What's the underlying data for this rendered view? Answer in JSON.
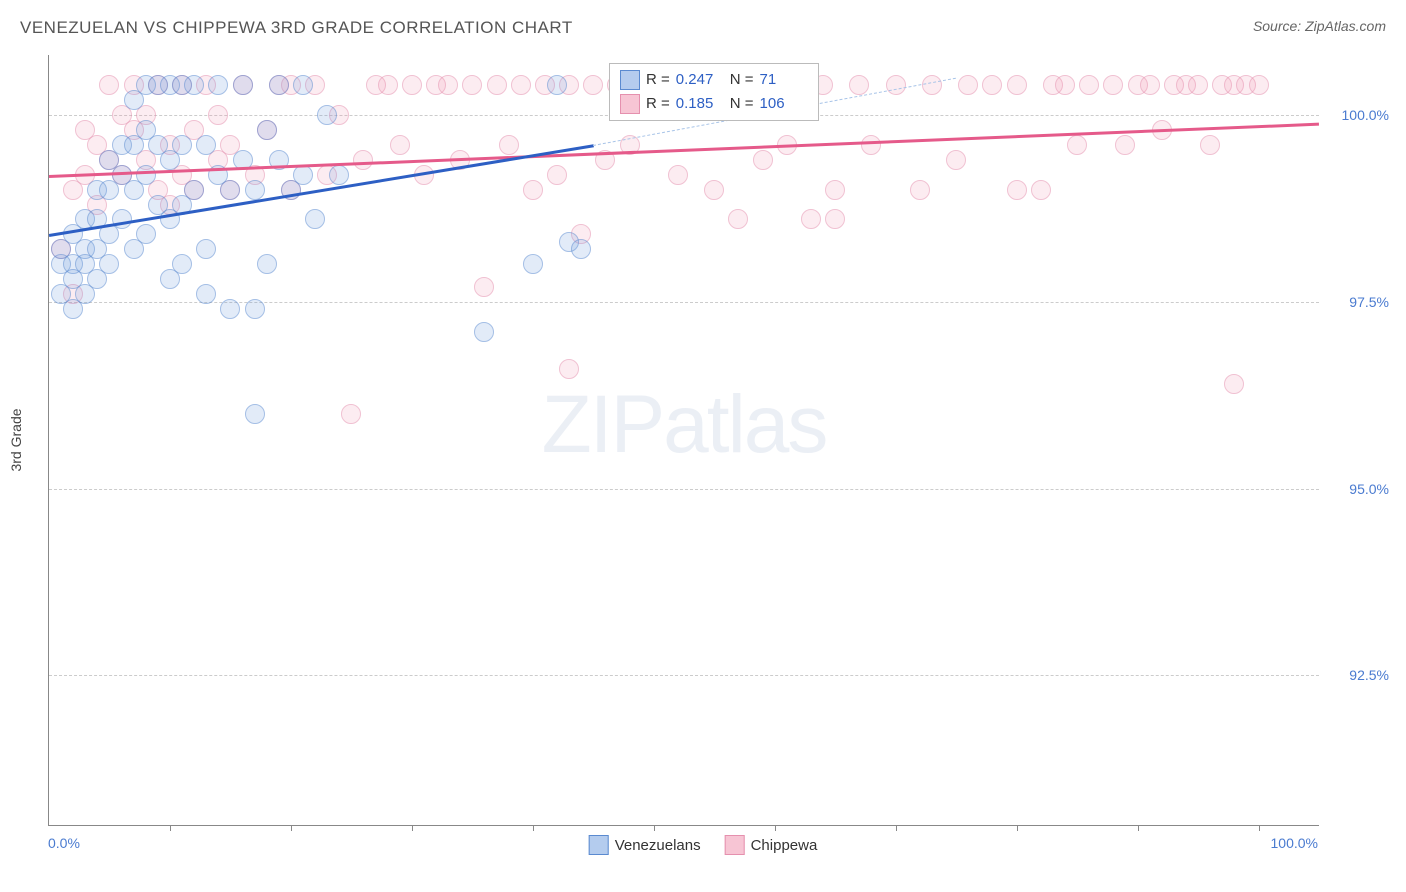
{
  "title": "VENEZUELAN VS CHIPPEWA 3RD GRADE CORRELATION CHART",
  "source": "Source: ZipAtlas.com",
  "axis": {
    "y_title": "3rd Grade",
    "x_min_label": "0.0%",
    "x_max_label": "100.0%",
    "y_ticks": [
      {
        "val": 100.0,
        "label": "100.0%"
      },
      {
        "val": 97.5,
        "label": "97.5%"
      },
      {
        "val": 95.0,
        "label": "95.0%"
      },
      {
        "val": 92.5,
        "label": "92.5%"
      }
    ],
    "x_tick_positions": [
      10,
      20,
      30,
      40,
      50,
      60,
      70,
      80,
      90,
      100
    ],
    "xlim": [
      0,
      105
    ],
    "ylim": [
      90.5,
      100.8
    ]
  },
  "series": [
    {
      "name": "Venezuelans",
      "color_fill": "#6a9ade",
      "color_stroke": "#5a8ad0",
      "class": "blue"
    },
    {
      "name": "Chippewa",
      "color_fill": "#f08caa",
      "color_stroke": "#e590ae",
      "class": "pink"
    }
  ],
  "stats": [
    {
      "series": "Venezuelans",
      "R": "0.247",
      "N": "71"
    },
    {
      "series": "Chippewa",
      "R": "0.185",
      "N": "106"
    }
  ],
  "trend_lines": {
    "blue": {
      "x1": 0,
      "y1": 98.4,
      "x2": 45,
      "y2": 99.6
    },
    "blue_dash": {
      "x1": 45,
      "y1": 99.6,
      "x2": 75,
      "y2": 100.5
    },
    "pink": {
      "x1": 0,
      "y1": 99.2,
      "x2": 105,
      "y2": 99.9
    }
  },
  "watermark": {
    "part1": "ZIP",
    "part2": "atlas"
  },
  "points_blue": [
    [
      1,
      98.2
    ],
    [
      1,
      98.0
    ],
    [
      1,
      97.6
    ],
    [
      2,
      98.4
    ],
    [
      2,
      98.0
    ],
    [
      2,
      97.8
    ],
    [
      2,
      97.4
    ],
    [
      3,
      98.6
    ],
    [
      3,
      98.2
    ],
    [
      3,
      98.0
    ],
    [
      3,
      97.6
    ],
    [
      4,
      99.0
    ],
    [
      4,
      98.6
    ],
    [
      4,
      98.2
    ],
    [
      4,
      97.8
    ],
    [
      5,
      99.4
    ],
    [
      5,
      99.0
    ],
    [
      5,
      98.4
    ],
    [
      5,
      98.0
    ],
    [
      6,
      99.6
    ],
    [
      6,
      99.2
    ],
    [
      6,
      98.6
    ],
    [
      7,
      100.2
    ],
    [
      7,
      99.6
    ],
    [
      7,
      99.0
    ],
    [
      7,
      98.2
    ],
    [
      8,
      100.4
    ],
    [
      8,
      99.8
    ],
    [
      8,
      99.2
    ],
    [
      8,
      98.4
    ],
    [
      9,
      100.4
    ],
    [
      9,
      99.6
    ],
    [
      9,
      98.8
    ],
    [
      10,
      100.4
    ],
    [
      10,
      99.4
    ],
    [
      10,
      98.6
    ],
    [
      10,
      97.8
    ],
    [
      11,
      100.4
    ],
    [
      11,
      99.6
    ],
    [
      11,
      98.8
    ],
    [
      11,
      98.0
    ],
    [
      12,
      100.4
    ],
    [
      12,
      99.0
    ],
    [
      13,
      99.6
    ],
    [
      13,
      98.2
    ],
    [
      13,
      97.6
    ],
    [
      14,
      99.2
    ],
    [
      14,
      100.4
    ],
    [
      15,
      99.0
    ],
    [
      15,
      97.4
    ],
    [
      16,
      100.4
    ],
    [
      16,
      99.4
    ],
    [
      17,
      99.0
    ],
    [
      17,
      97.4
    ],
    [
      18,
      99.8
    ],
    [
      18,
      98.0
    ],
    [
      19,
      99.4
    ],
    [
      19,
      100.4
    ],
    [
      20,
      99.0
    ],
    [
      21,
      100.4
    ],
    [
      21,
      99.2
    ],
    [
      22,
      98.6
    ],
    [
      23,
      100.0
    ],
    [
      24,
      99.2
    ],
    [
      17,
      96.0
    ],
    [
      36,
      97.1
    ],
    [
      40,
      98.0
    ],
    [
      42,
      100.4
    ],
    [
      43,
      98.3
    ],
    [
      44,
      98.2
    ]
  ],
  "points_pink": [
    [
      1,
      98.2
    ],
    [
      2,
      99.0
    ],
    [
      2,
      97.6
    ],
    [
      3,
      99.2
    ],
    [
      3,
      99.8
    ],
    [
      4,
      99.6
    ],
    [
      4,
      98.8
    ],
    [
      5,
      100.4
    ],
    [
      5,
      99.4
    ],
    [
      6,
      100.0
    ],
    [
      6,
      99.2
    ],
    [
      7,
      100.4
    ],
    [
      7,
      99.8
    ],
    [
      8,
      99.4
    ],
    [
      8,
      100.0
    ],
    [
      9,
      99.0
    ],
    [
      9,
      100.4
    ],
    [
      10,
      99.6
    ],
    [
      10,
      98.8
    ],
    [
      11,
      100.4
    ],
    [
      11,
      99.2
    ],
    [
      12,
      99.8
    ],
    [
      12,
      99.0
    ],
    [
      13,
      100.4
    ],
    [
      14,
      99.4
    ],
    [
      14,
      100.0
    ],
    [
      15,
      99.6
    ],
    [
      15,
      99.0
    ],
    [
      16,
      100.4
    ],
    [
      17,
      99.2
    ],
    [
      18,
      99.8
    ],
    [
      19,
      100.4
    ],
    [
      20,
      99.0
    ],
    [
      20,
      100.4
    ],
    [
      22,
      100.4
    ],
    [
      23,
      99.2
    ],
    [
      24,
      100.0
    ],
    [
      25,
      96.0
    ],
    [
      26,
      99.4
    ],
    [
      27,
      100.4
    ],
    [
      28,
      100.4
    ],
    [
      29,
      99.6
    ],
    [
      30,
      100.4
    ],
    [
      31,
      99.2
    ],
    [
      32,
      100.4
    ],
    [
      33,
      100.4
    ],
    [
      34,
      99.4
    ],
    [
      35,
      100.4
    ],
    [
      36,
      97.7
    ],
    [
      37,
      100.4
    ],
    [
      38,
      99.6
    ],
    [
      39,
      100.4
    ],
    [
      40,
      99.0
    ],
    [
      41,
      100.4
    ],
    [
      42,
      99.2
    ],
    [
      43,
      100.4
    ],
    [
      43,
      96.6
    ],
    [
      44,
      98.4
    ],
    [
      45,
      100.4
    ],
    [
      46,
      99.4
    ],
    [
      47,
      100.4
    ],
    [
      48,
      99.6
    ],
    [
      49,
      100.4
    ],
    [
      50,
      100.4
    ],
    [
      52,
      99.2
    ],
    [
      54,
      100.4
    ],
    [
      55,
      99.0
    ],
    [
      56,
      100.4
    ],
    [
      57,
      98.6
    ],
    [
      58,
      100.4
    ],
    [
      59,
      99.4
    ],
    [
      60,
      100.4
    ],
    [
      61,
      99.6
    ],
    [
      62,
      100.4
    ],
    [
      63,
      98.6
    ],
    [
      64,
      100.4
    ],
    [
      65,
      99.0
    ],
    [
      65,
      98.6
    ],
    [
      67,
      100.4
    ],
    [
      68,
      99.6
    ],
    [
      70,
      100.4
    ],
    [
      72,
      99.0
    ],
    [
      73,
      100.4
    ],
    [
      75,
      99.4
    ],
    [
      76,
      100.4
    ],
    [
      78,
      100.4
    ],
    [
      80,
      100.4
    ],
    [
      80,
      99.0
    ],
    [
      82,
      99.0
    ],
    [
      83,
      100.4
    ],
    [
      84,
      100.4
    ],
    [
      85,
      99.6
    ],
    [
      86,
      100.4
    ],
    [
      88,
      100.4
    ],
    [
      89,
      99.6
    ],
    [
      90,
      100.4
    ],
    [
      91,
      100.4
    ],
    [
      92,
      99.8
    ],
    [
      93,
      100.4
    ],
    [
      94,
      100.4
    ],
    [
      95,
      100.4
    ],
    [
      96,
      99.6
    ],
    [
      97,
      100.4
    ],
    [
      98,
      100.4
    ],
    [
      99,
      100.4
    ],
    [
      100,
      100.4
    ],
    [
      98,
      96.4
    ]
  ]
}
